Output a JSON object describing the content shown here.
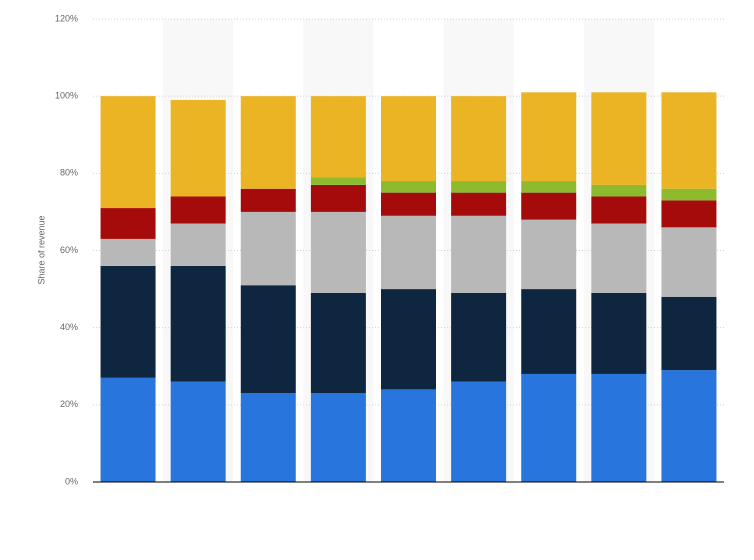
{
  "chart_data": {
    "type": "stacked-bar",
    "y_label": "Share of revenue",
    "categories": [
      null,
      null,
      null,
      null,
      null,
      null,
      null,
      null,
      null
    ],
    "series": [
      {
        "color": "#2876dd",
        "values": [
          27,
          26,
          23,
          23,
          24,
          26,
          28,
          28,
          29
        ]
      },
      {
        "color": "#0f2640",
        "values": [
          29,
          30,
          28,
          26,
          26,
          23,
          22,
          21,
          19
        ]
      },
      {
        "color": "#b8b8b8",
        "values": [
          7,
          11,
          19,
          21,
          19,
          20,
          18,
          18,
          18
        ]
      },
      {
        "color": "#a50b0b",
        "values": [
          8,
          7,
          6,
          7,
          6,
          6,
          7,
          7,
          7
        ]
      },
      {
        "color": "#8dbb2d",
        "values": [
          0,
          0,
          0,
          2,
          3,
          3,
          3,
          3,
          3
        ]
      },
      {
        "color": "#eab424",
        "values": [
          29,
          25,
          24,
          21,
          22,
          22,
          23,
          24,
          25
        ]
      }
    ],
    "ylim": [
      0,
      120
    ],
    "yticks": [
      {
        "value": 0,
        "label": "0%"
      },
      {
        "value": 20,
        "label": "20%"
      },
      {
        "value": 40,
        "label": "40%"
      },
      {
        "value": 60,
        "label": "60%"
      },
      {
        "value": 80,
        "label": "80%"
      },
      {
        "value": 100,
        "label": "100%"
      },
      {
        "value": 120,
        "label": "120%"
      }
    ],
    "grid": true
  }
}
